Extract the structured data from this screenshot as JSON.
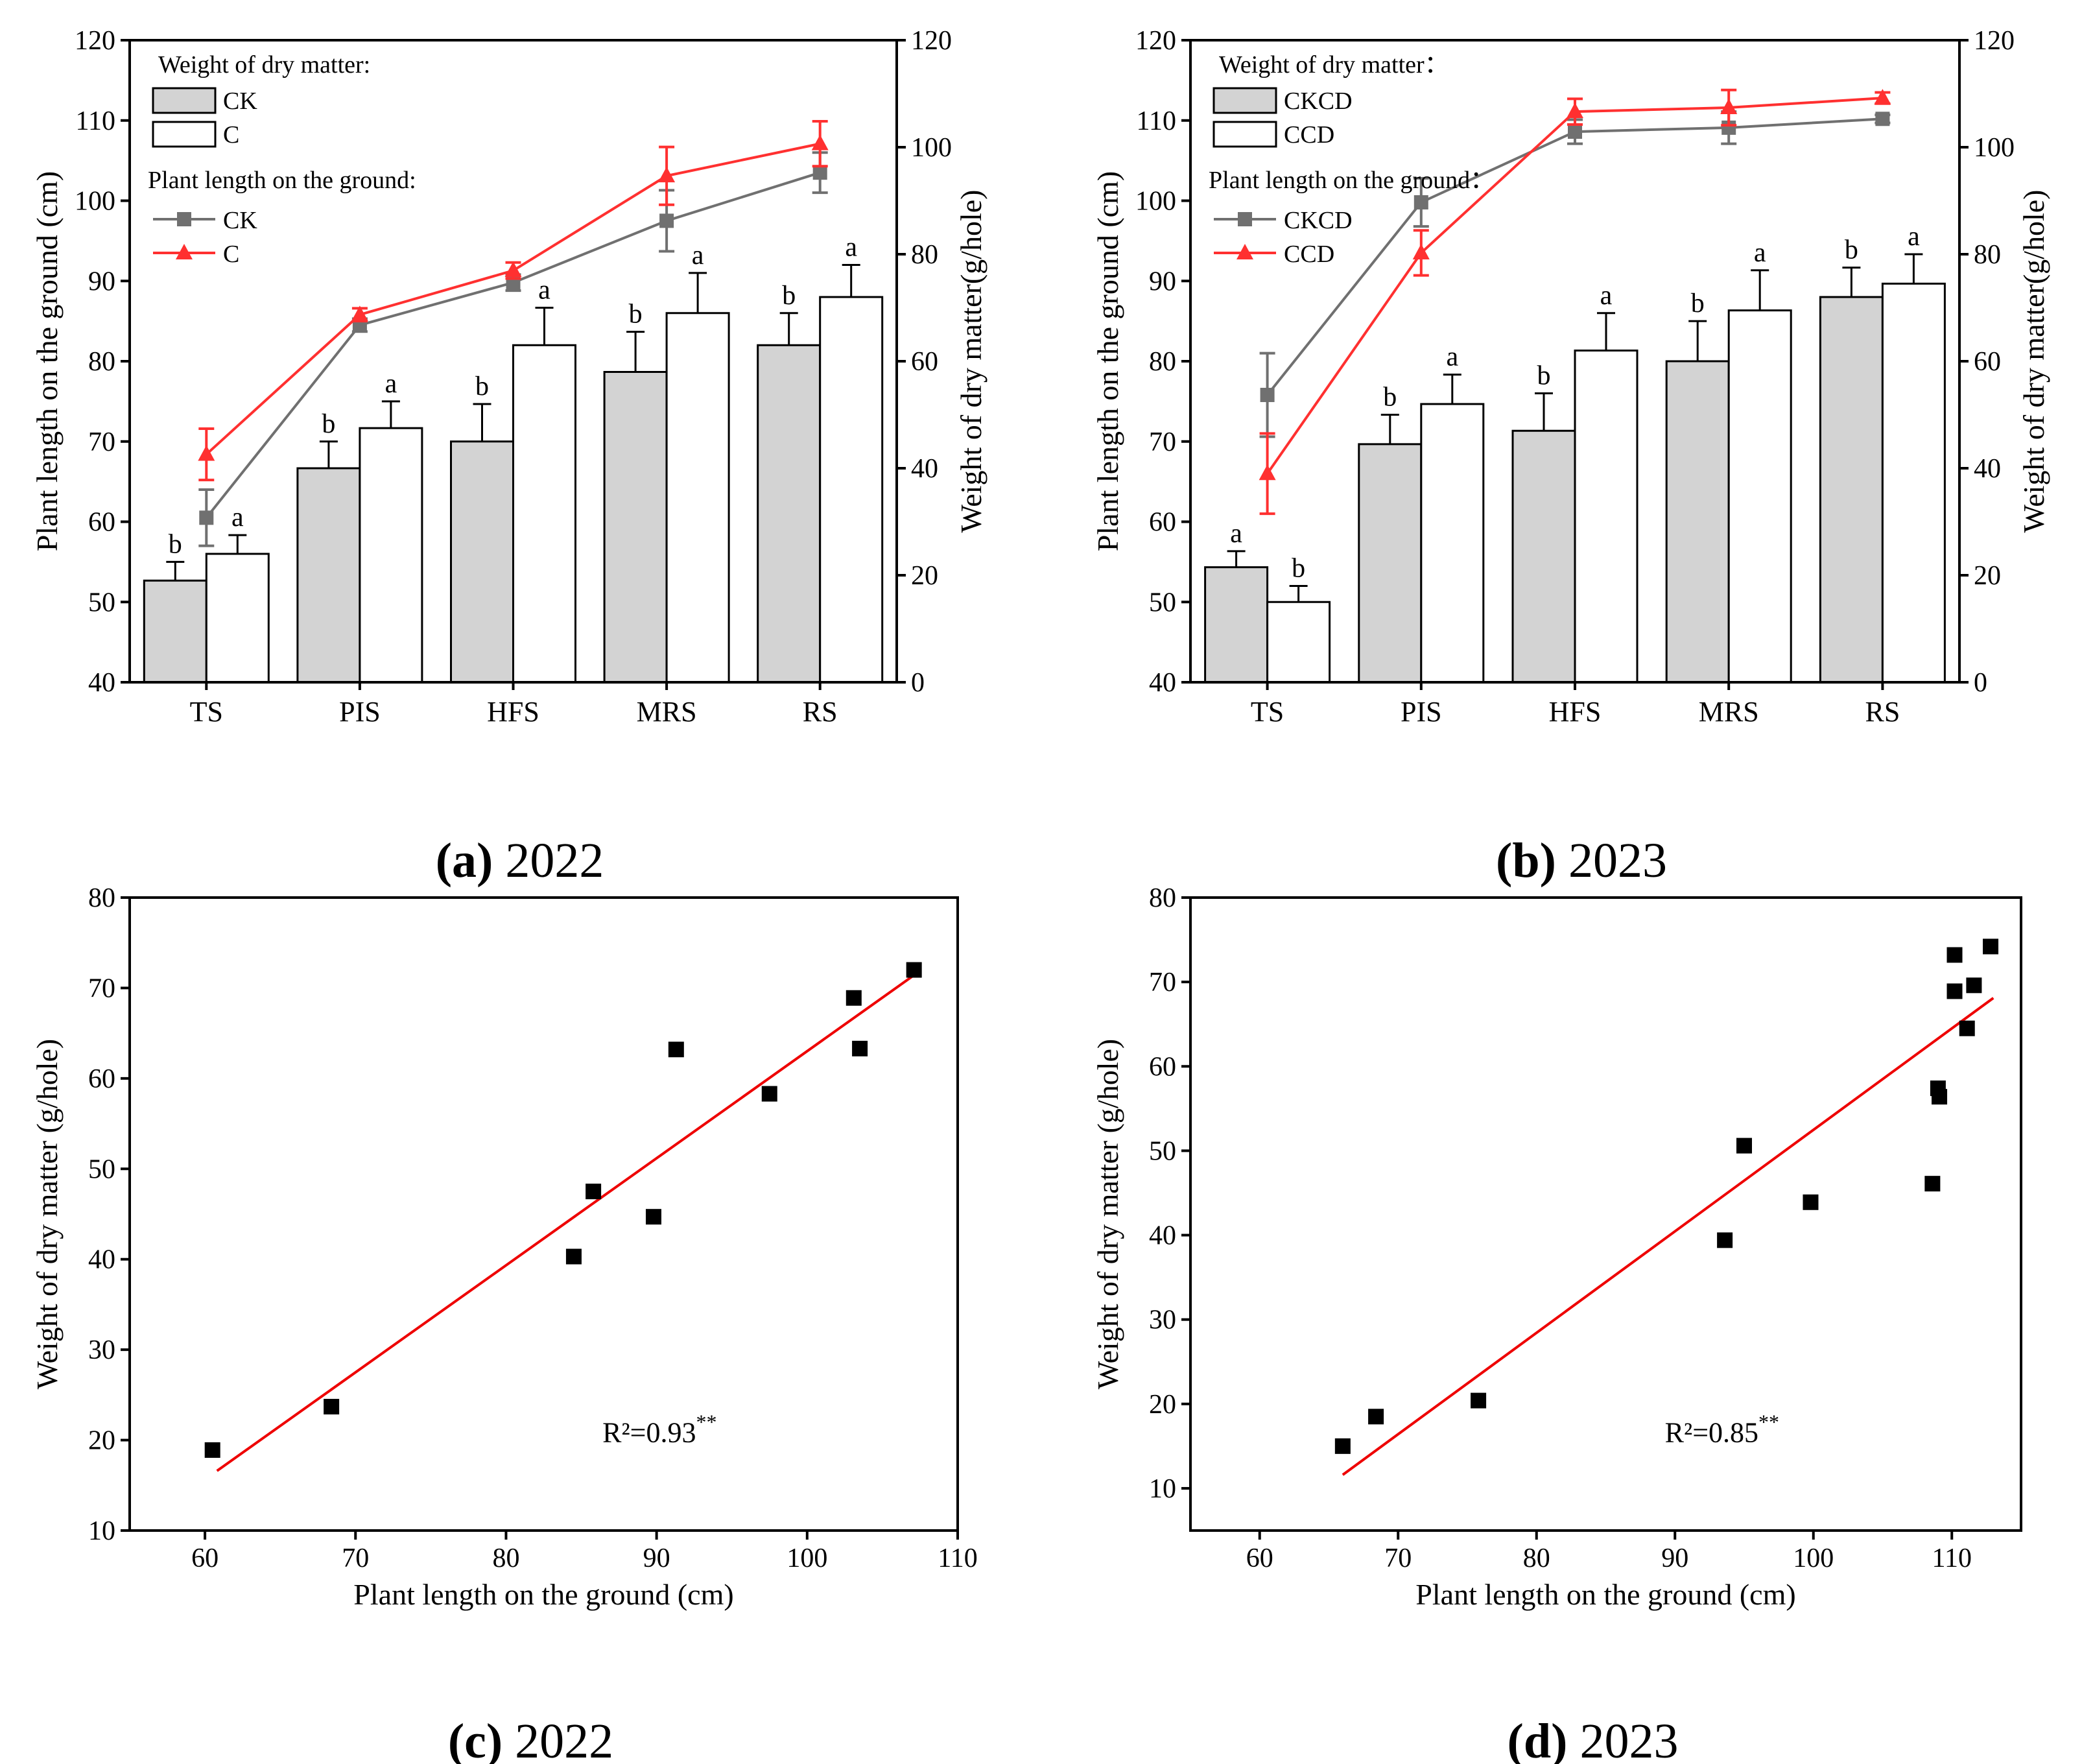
{
  "colors": {
    "bar_ck": "#d3d3d3",
    "bar_c": "#ffffff",
    "line_ck": "#707070",
    "line_c": "#ff3030",
    "fit_line": "#ee0000",
    "scatter": "#000000"
  },
  "chart_data": [
    {
      "id": "a",
      "type": "bar+line",
      "caption_label": "(a)",
      "caption_year": "2022",
      "categories": [
        "TS",
        "PIS",
        "HFS",
        "MRS",
        "RS"
      ],
      "ylabel_left": "Plant length on the ground (cm)",
      "ylabel_right": "Weight of dry matter(g/hole)",
      "ylim_left": [
        40,
        120
      ],
      "ylim_right": [
        0,
        120
      ],
      "yticks_left": [
        "40",
        "50",
        "60",
        "70",
        "80",
        "90",
        "100",
        "110",
        "120"
      ],
      "yticks_right": [
        "0",
        "20",
        "40",
        "60",
        "80",
        "100",
        "120"
      ],
      "legend": {
        "bar_heading": "Weight of dry matter:",
        "bar_items": [
          "CK",
          "C"
        ],
        "line_heading": "Plant length on the ground:",
        "line_items": [
          "CK",
          "C"
        ]
      },
      "bar_series": [
        {
          "name": "CK",
          "values": [
            19,
            40,
            45,
            58,
            63
          ],
          "errors": [
            3.5,
            5,
            7,
            7.5,
            6
          ],
          "letters": [
            "b",
            "b",
            "b",
            "b",
            "b"
          ]
        },
        {
          "name": "C",
          "values": [
            24,
            47.5,
            63,
            69,
            72
          ],
          "errors": [
            3.5,
            5,
            7,
            7.5,
            6
          ],
          "letters": [
            "a",
            "a",
            "a",
            "a",
            "a"
          ]
        }
      ],
      "line_series": [
        {
          "name": "CK",
          "values": [
            60.5,
            84.5,
            89.8,
            97.5,
            103.5
          ],
          "errors": [
            3.5,
            0.8,
            1,
            3.8,
            2.5
          ]
        },
        {
          "name": "C",
          "values": [
            68.4,
            85.8,
            91.3,
            103.1,
            107.1
          ],
          "errors": [
            3.2,
            0.8,
            1,
            3.6,
            2.8
          ]
        }
      ]
    },
    {
      "id": "b",
      "type": "bar+line",
      "caption_label": "(b)",
      "caption_year": "2023",
      "categories": [
        "TS",
        "PIS",
        "HFS",
        "MRS",
        "RS"
      ],
      "ylabel_left": "Plant length on the ground (cm)",
      "ylabel_right": "Weight of dry matter(g/hole)",
      "ylim_left": [
        40,
        120
      ],
      "ylim_right": [
        0,
        120
      ],
      "yticks_left": [
        "40",
        "50",
        "60",
        "70",
        "80",
        "90",
        "100",
        "110",
        "120"
      ],
      "yticks_right": [
        "0",
        "20",
        "40",
        "60",
        "80",
        "100",
        "120"
      ],
      "legend": {
        "bar_heading": "Weight of dry matter：",
        "bar_items": [
          "CKCD",
          "CCD"
        ],
        "line_heading": "Plant length on the ground：",
        "line_items": [
          "CKCD",
          "CCD"
        ]
      },
      "bar_series": [
        {
          "name": "CKCD",
          "values": [
            21.5,
            44.5,
            47,
            60,
            72
          ],
          "errors": [
            3,
            5.5,
            7,
            7.5,
            5.5
          ],
          "letters": [
            "a",
            "b",
            "b",
            "b",
            "b"
          ]
        },
        {
          "name": "CCD",
          "values": [
            15,
            52,
            62,
            69.5,
            74.5
          ],
          "errors": [
            3,
            5.5,
            7,
            7.5,
            5.5
          ],
          "letters": [
            "b",
            "a",
            "a",
            "a",
            "a"
          ]
        }
      ],
      "line_series": [
        {
          "name": "CKCD",
          "values": [
            75.8,
            99.8,
            108.6,
            109.1,
            110.2
          ],
          "errors": [
            5.2,
            3,
            1.5,
            2,
            0.5
          ]
        },
        {
          "name": "CCD",
          "values": [
            66,
            93.5,
            111.1,
            111.6,
            112.8
          ],
          "errors": [
            5,
            2.8,
            1.6,
            2.2,
            0.7
          ]
        }
      ]
    },
    {
      "id": "c",
      "type": "scatter",
      "caption_label": "(c)",
      "caption_year": "2022",
      "xlabel": "Plant length on the ground (cm)",
      "ylabel": "Weight of dry matter (g/hole)",
      "xlim": [
        55,
        110
      ],
      "ylim": [
        10,
        80
      ],
      "xticks": [
        60,
        70,
        80,
        90,
        100,
        110
      ],
      "yticks": [
        10,
        20,
        30,
        40,
        50,
        60,
        70,
        80
      ],
      "points": [
        [
          60.5,
          18.9
        ],
        [
          68.4,
          23.7
        ],
        [
          84.5,
          40.3
        ],
        [
          85.8,
          47.5
        ],
        [
          89.8,
          44.7
        ],
        [
          91.3,
          63.2
        ],
        [
          97.5,
          58.3
        ],
        [
          103.1,
          68.9
        ],
        [
          103.5,
          63.3
        ],
        [
          107.1,
          72.0
        ]
      ],
      "fit_line": [
        [
          60.8,
          16.6
        ],
        [
          107.0,
          71.3
        ]
      ],
      "r2_base": "R²=0.93",
      "r2_sup": "**"
    },
    {
      "id": "d",
      "type": "scatter",
      "caption_label": "(d)",
      "caption_year": "2023",
      "xlabel": "Plant length on the ground (cm)",
      "ylabel": "Weight of dry matter (g/hole)",
      "xlim": [
        55,
        115
      ],
      "ylim": [
        5,
        80
      ],
      "xticks": [
        60,
        70,
        80,
        90,
        100,
        110
      ],
      "yticks": [
        10,
        20,
        30,
        40,
        50,
        60,
        70,
        80
      ],
      "points": [
        [
          66,
          15
        ],
        [
          68.4,
          18.5
        ],
        [
          75.8,
          20.4
        ],
        [
          93.6,
          39.4
        ],
        [
          95,
          50.6
        ],
        [
          99.8,
          43.9
        ],
        [
          108.6,
          46.1
        ],
        [
          109,
          57.4
        ],
        [
          109.1,
          56.4
        ],
        [
          110.2,
          68.9
        ],
        [
          110.2,
          73.2
        ],
        [
          111.1,
          64.5
        ],
        [
          111.6,
          69.6
        ],
        [
          112.8,
          74.2
        ]
      ],
      "fit_line": [
        [
          66,
          11.6
        ],
        [
          113,
          68.1
        ]
      ],
      "r2_base": "R²=0.85",
      "r2_sup": "**"
    }
  ]
}
